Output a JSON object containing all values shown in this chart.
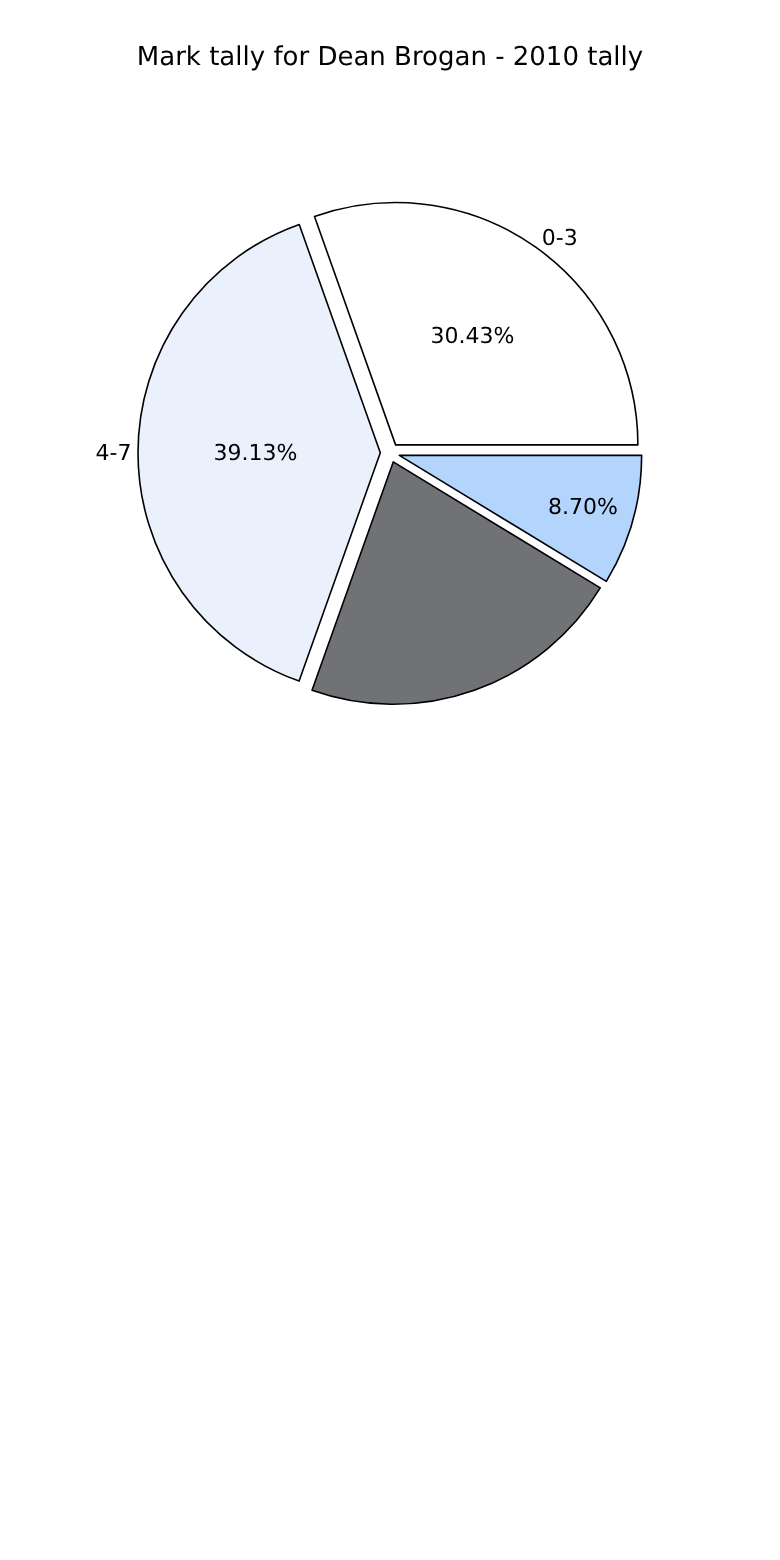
{
  "chart_data": {
    "type": "pie",
    "title": "Mark tally for Dean Brogan - 2010 tally",
    "categories": [
      "0-3",
      "4-7",
      null,
      null
    ],
    "values": [
      30.43,
      39.13,
      21.74,
      8.7
    ],
    "value_labels": [
      "30.43%",
      "39.13%",
      null,
      "8.70%"
    ],
    "colors": [
      "#ffffff",
      "#eaf1fd",
      "#707275",
      "#b3d4fc"
    ],
    "legend": false
  }
}
